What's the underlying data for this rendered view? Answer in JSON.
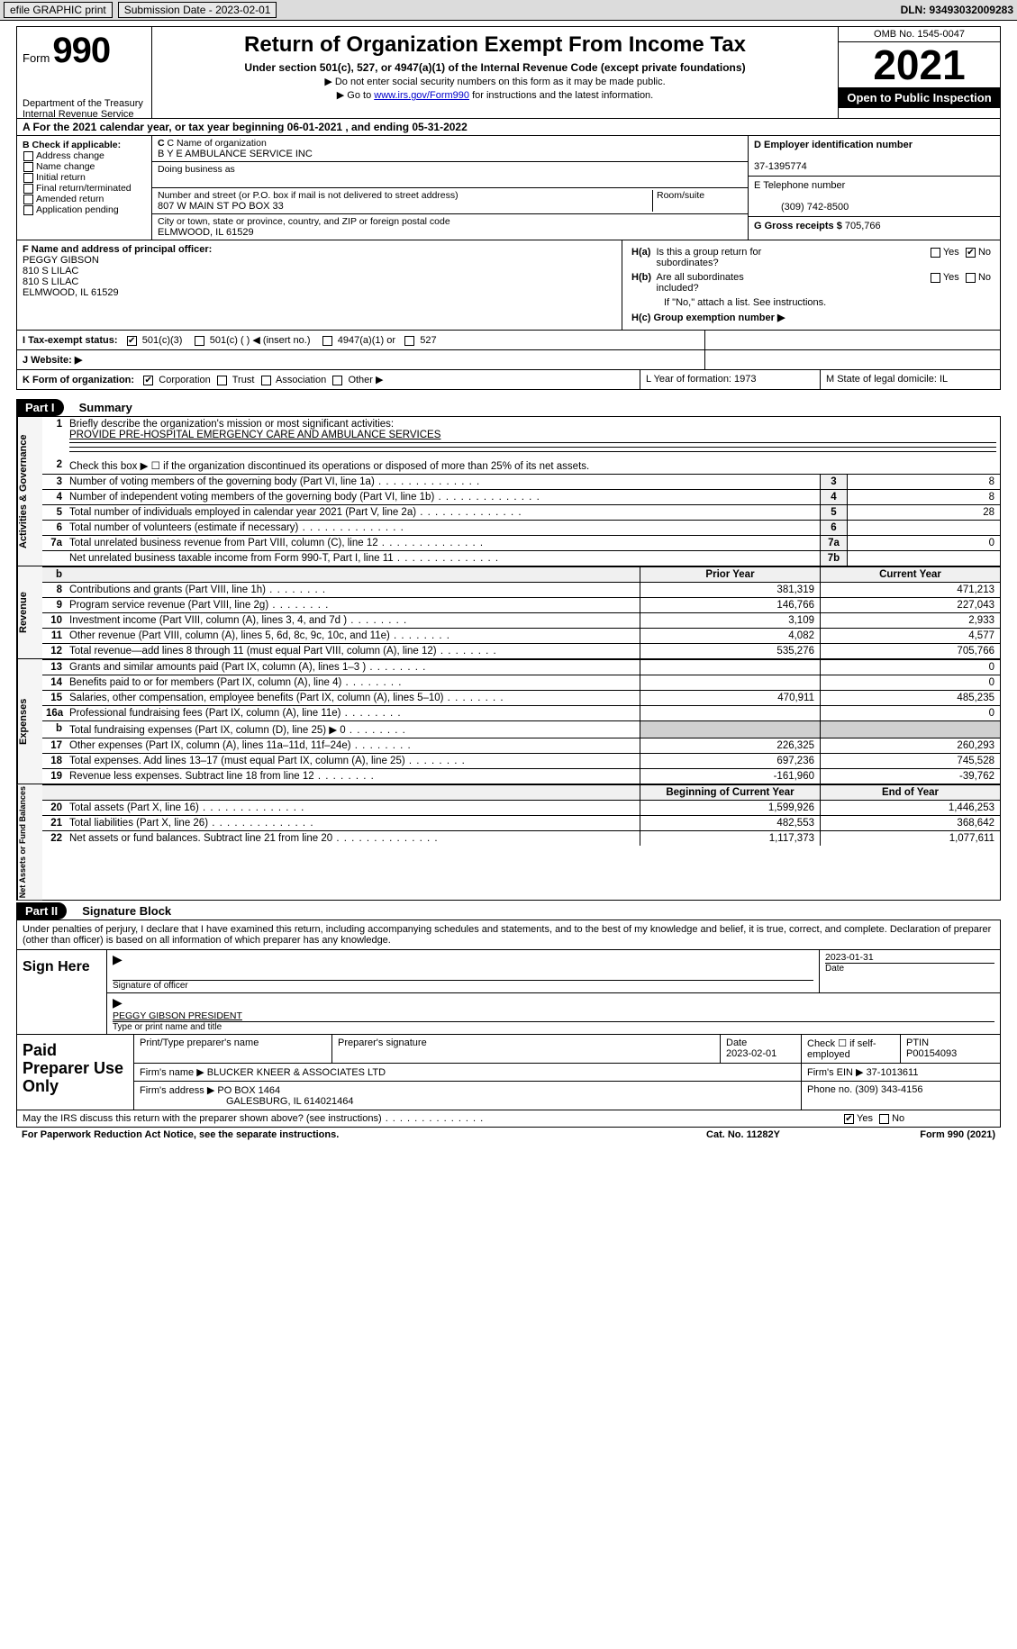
{
  "topbar": {
    "efile": "efile GRAPHIC print",
    "sub_date_label": "Submission Date - 2023-02-01",
    "dln": "DLN: 93493032009283"
  },
  "header": {
    "form_label": "Form",
    "form_num": "990",
    "dept": "Department of the Treasury",
    "irs": "Internal Revenue Service",
    "title": "Return of Organization Exempt From Income Tax",
    "subtitle": "Under section 501(c), 527, or 4947(a)(1) of the Internal Revenue Code (except private foundations)",
    "note1": "▶ Do not enter social security numbers on this form as it may be made public.",
    "note2_pre": "▶ Go to ",
    "note2_link": "www.irs.gov/Form990",
    "note2_post": " for instructions and the latest information.",
    "omb": "OMB No. 1545-0047",
    "year": "2021",
    "open": "Open to Public Inspection"
  },
  "rowA": "A For the 2021 calendar year, or tax year beginning 06-01-2021    , and ending 05-31-2022",
  "boxB": {
    "label": "B Check if applicable:",
    "items": [
      "Address change",
      "Name change",
      "Initial return",
      "Final return/terminated",
      "Amended return",
      "Application pending"
    ]
  },
  "boxC": {
    "name_lbl": "C Name of organization",
    "name": "B Y E AMBULANCE SERVICE INC",
    "dba_lbl": "Doing business as",
    "dba": "",
    "addr_lbl": "Number and street (or P.O. box if mail is not delivered to street address)",
    "room_lbl": "Room/suite",
    "addr": "807 W MAIN ST PO BOX 33",
    "city_lbl": "City or town, state or province, country, and ZIP or foreign postal code",
    "city": "ELMWOOD, IL  61529"
  },
  "boxD": {
    "lbl": "D Employer identification number",
    "val": "37-1395774"
  },
  "boxE": {
    "lbl": "E Telephone number",
    "val": "(309) 742-8500"
  },
  "boxG": {
    "lbl": "G Gross receipts $",
    "val": "705,766"
  },
  "boxF": {
    "lbl": "F  Name and address of principal officer:",
    "l1": "PEGGY GIBSON",
    "l2": "810 S LILAC",
    "l3": "810 S LILAC",
    "l4": "ELMWOOD, IL  61529"
  },
  "boxH": {
    "a_lbl": "H(a)  Is this a group return for subordinates?",
    "b_lbl": "H(b)  Are all subordinates included?",
    "b_note": "If \"No,\" attach a list. See instructions.",
    "c_lbl": "H(c)  Group exemption number ▶",
    "yes": "Yes",
    "no": "No"
  },
  "boxI": {
    "lbl": "I    Tax-exempt status:",
    "opts": [
      "501(c)(3)",
      "501(c) (  ) ◀ (insert no.)",
      "4947(a)(1) or",
      "527"
    ]
  },
  "boxJ": {
    "lbl": "J   Website: ▶"
  },
  "boxK": {
    "lbl": "K Form of organization:",
    "opts": [
      "Corporation",
      "Trust",
      "Association",
      "Other ▶"
    ]
  },
  "boxL": {
    "lbl": "L Year of formation: 1973"
  },
  "boxM": {
    "lbl": "M State of legal domicile: IL"
  },
  "part1": {
    "hdr": "Part I",
    "title": "Summary"
  },
  "summary": {
    "sec1_tab": "Activities & Governance",
    "line1_lbl": "Briefly describe the organization's mission or most significant activities:",
    "line1_val": "PROVIDE PRE-HOSPITAL EMERGENCY CARE AND AMBULANCE SERVICES",
    "line2": "Check this box ▶ ☐  if the organization discontinued its operations or disposed of more than 25% of its net assets.",
    "rows": [
      {
        "n": "3",
        "t": "Number of voting members of the governing body (Part VI, line 1a)",
        "box": "3",
        "v": "8"
      },
      {
        "n": "4",
        "t": "Number of independent voting members of the governing body (Part VI, line 1b)",
        "box": "4",
        "v": "8"
      },
      {
        "n": "5",
        "t": "Total number of individuals employed in calendar year 2021 (Part V, line 2a)",
        "box": "5",
        "v": "28"
      },
      {
        "n": "6",
        "t": "Total number of volunteers (estimate if necessary)",
        "box": "6",
        "v": ""
      },
      {
        "n": "7a",
        "t": "Total unrelated business revenue from Part VIII, column (C), line 12",
        "box": "7a",
        "v": "0"
      },
      {
        "n": "",
        "t": "Net unrelated business taxable income from Form 990-T, Part I, line 11",
        "box": "7b",
        "v": ""
      }
    ],
    "col_prior": "Prior Year",
    "col_curr": "Current Year",
    "sec2_tab": "Revenue",
    "rev": [
      {
        "n": "8",
        "t": "Contributions and grants (Part VIII, line 1h)",
        "p": "381,319",
        "c": "471,213"
      },
      {
        "n": "9",
        "t": "Program service revenue (Part VIII, line 2g)",
        "p": "146,766",
        "c": "227,043"
      },
      {
        "n": "10",
        "t": "Investment income (Part VIII, column (A), lines 3, 4, and 7d )",
        "p": "3,109",
        "c": "2,933"
      },
      {
        "n": "11",
        "t": "Other revenue (Part VIII, column (A), lines 5, 6d, 8c, 9c, 10c, and 11e)",
        "p": "4,082",
        "c": "4,577"
      },
      {
        "n": "12",
        "t": "Total revenue—add lines 8 through 11 (must equal Part VIII, column (A), line 12)",
        "p": "535,276",
        "c": "705,766"
      }
    ],
    "sec3_tab": "Expenses",
    "exp": [
      {
        "n": "13",
        "t": "Grants and similar amounts paid (Part IX, column (A), lines 1–3 )",
        "p": "",
        "c": "0"
      },
      {
        "n": "14",
        "t": "Benefits paid to or for members (Part IX, column (A), line 4)",
        "p": "",
        "c": "0"
      },
      {
        "n": "15",
        "t": "Salaries, other compensation, employee benefits (Part IX, column (A), lines 5–10)",
        "p": "470,911",
        "c": "485,235"
      },
      {
        "n": "16a",
        "t": "Professional fundraising fees (Part IX, column (A), line 11e)",
        "p": "",
        "c": "0"
      },
      {
        "n": "b",
        "t": "Total fundraising expenses (Part IX, column (D), line 25) ▶ 0",
        "p": "grey",
        "c": "grey"
      },
      {
        "n": "17",
        "t": "Other expenses (Part IX, column (A), lines 11a–11d, 11f–24e)",
        "p": "226,325",
        "c": "260,293"
      },
      {
        "n": "18",
        "t": "Total expenses. Add lines 13–17 (must equal Part IX, column (A), line 25)",
        "p": "697,236",
        "c": "745,528"
      },
      {
        "n": "19",
        "t": "Revenue less expenses. Subtract line 18 from line 12",
        "p": "-161,960",
        "c": "-39,762"
      }
    ],
    "col_beg": "Beginning of Current Year",
    "col_end": "End of Year",
    "sec4_tab": "Net Assets or Fund Balances",
    "net": [
      {
        "n": "20",
        "t": "Total assets (Part X, line 16)",
        "p": "1,599,926",
        "c": "1,446,253"
      },
      {
        "n": "21",
        "t": "Total liabilities (Part X, line 26)",
        "p": "482,553",
        "c": "368,642"
      },
      {
        "n": "22",
        "t": "Net assets or fund balances. Subtract line 21 from line 20",
        "p": "1,117,373",
        "c": "1,077,611"
      }
    ]
  },
  "part2": {
    "hdr": "Part II",
    "title": "Signature Block"
  },
  "sig": {
    "penalty": "Under penalties of perjury, I declare that I have examined this return, including accompanying schedules and statements, and to the best of my knowledge and belief, it is true, correct, and complete. Declaration of preparer (other than officer) is based on all information of which preparer has any knowledge.",
    "sign_here": "Sign Here",
    "sig_officer": "Signature of officer",
    "date_val": "2023-01-31",
    "date_lbl": "Date",
    "name_title": "PEGGY GIBSON  PRESIDENT",
    "name_title_lbl": "Type or print name and title"
  },
  "prep": {
    "title": "Paid Preparer Use Only",
    "r1": {
      "c1": "Print/Type preparer's name",
      "c2": "Preparer's signature",
      "c3l": "Date",
      "c3v": "2023-02-01",
      "c4": "Check ☐ if self-employed",
      "c5l": "PTIN",
      "c5v": "P00154093"
    },
    "r2": {
      "c1": "Firm's name    ▶",
      "c1v": "BLUCKER KNEER & ASSOCIATES LTD",
      "c2": "Firm's EIN ▶",
      "c2v": "37-1013611"
    },
    "r3": {
      "c1": "Firm's address ▶",
      "c1v": "PO BOX 1464",
      "c1v2": "GALESBURG, IL  614021464",
      "c2": "Phone no.",
      "c2v": "(309) 343-4156"
    }
  },
  "footer": {
    "discuss": "May the IRS discuss this return with the preparer shown above? (see instructions)",
    "yes": "Yes",
    "no": "No",
    "paperwork": "For Paperwork Reduction Act Notice, see the separate instructions.",
    "cat": "Cat. No. 11282Y",
    "form": "Form 990 (2021)"
  }
}
